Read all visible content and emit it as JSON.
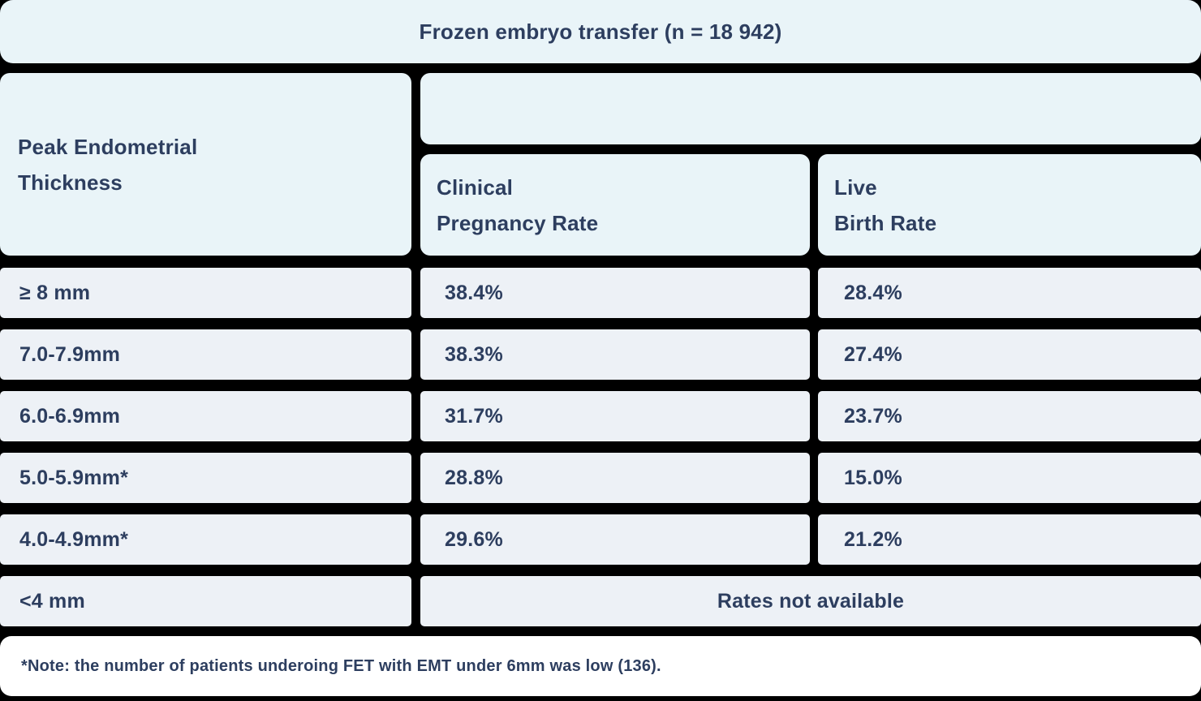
{
  "title": "Frozen embryo transfer (n = 18 942)",
  "columns": {
    "row_header": {
      "line1": "Peak Endometrial",
      "line2": "Thickness"
    },
    "clinical_pregnancy_rate": {
      "line1": "Clinical",
      "line2": "Pregnancy Rate"
    },
    "live_birth_rate": {
      "line1": "Live",
      "line2": "Birth Rate"
    }
  },
  "rows": [
    {
      "thickness": "≥ 8 mm",
      "clinical_pregnancy_rate": "38.4%",
      "live_birth_rate": "28.4%"
    },
    {
      "thickness": "7.0-7.9mm",
      "clinical_pregnancy_rate": "38.3%",
      "live_birth_rate": "27.4%"
    },
    {
      "thickness": "6.0-6.9mm",
      "clinical_pregnancy_rate": "31.7%",
      "live_birth_rate": "23.7%"
    },
    {
      "thickness": "5.0-5.9mm*",
      "clinical_pregnancy_rate": "28.8%",
      "live_birth_rate": "15.0%"
    },
    {
      "thickness": "4.0-4.9mm*",
      "clinical_pregnancy_rate": "29.6%",
      "live_birth_rate": "21.2%"
    }
  ],
  "merged_row": {
    "thickness": "<4 mm",
    "value": "Rates not available"
  },
  "footnote": "*Note: the number of patients underoing FET with EMT under 6mm was low (136).",
  "colors": {
    "header_bg": "#e9f4f8",
    "row_bg": "#edf1f6",
    "footnote_bg": "#ffffff",
    "text": "#2d3e5f",
    "divider": "#000000"
  },
  "chart_data": {
    "type": "table",
    "title": "Frozen embryo transfer (n = 18 942)",
    "columns": [
      "Peak Endometrial Thickness",
      "Clinical Pregnancy Rate",
      "Live Birth Rate"
    ],
    "rows": [
      [
        "≥ 8 mm",
        "38.4%",
        "28.4%"
      ],
      [
        "7.0-7.9mm",
        "38.3%",
        "27.4%"
      ],
      [
        "6.0-6.9mm",
        "31.7%",
        "23.7%"
      ],
      [
        "5.0-5.9mm*",
        "28.8%",
        "15.0%"
      ],
      [
        "4.0-4.9mm*",
        "29.6%",
        "21.2%"
      ],
      [
        "<4 mm",
        "Rates not available",
        "Rates not available"
      ]
    ],
    "footnote": "*Note: the number of patients underoing FET with EMT under 6mm was low (136)."
  }
}
